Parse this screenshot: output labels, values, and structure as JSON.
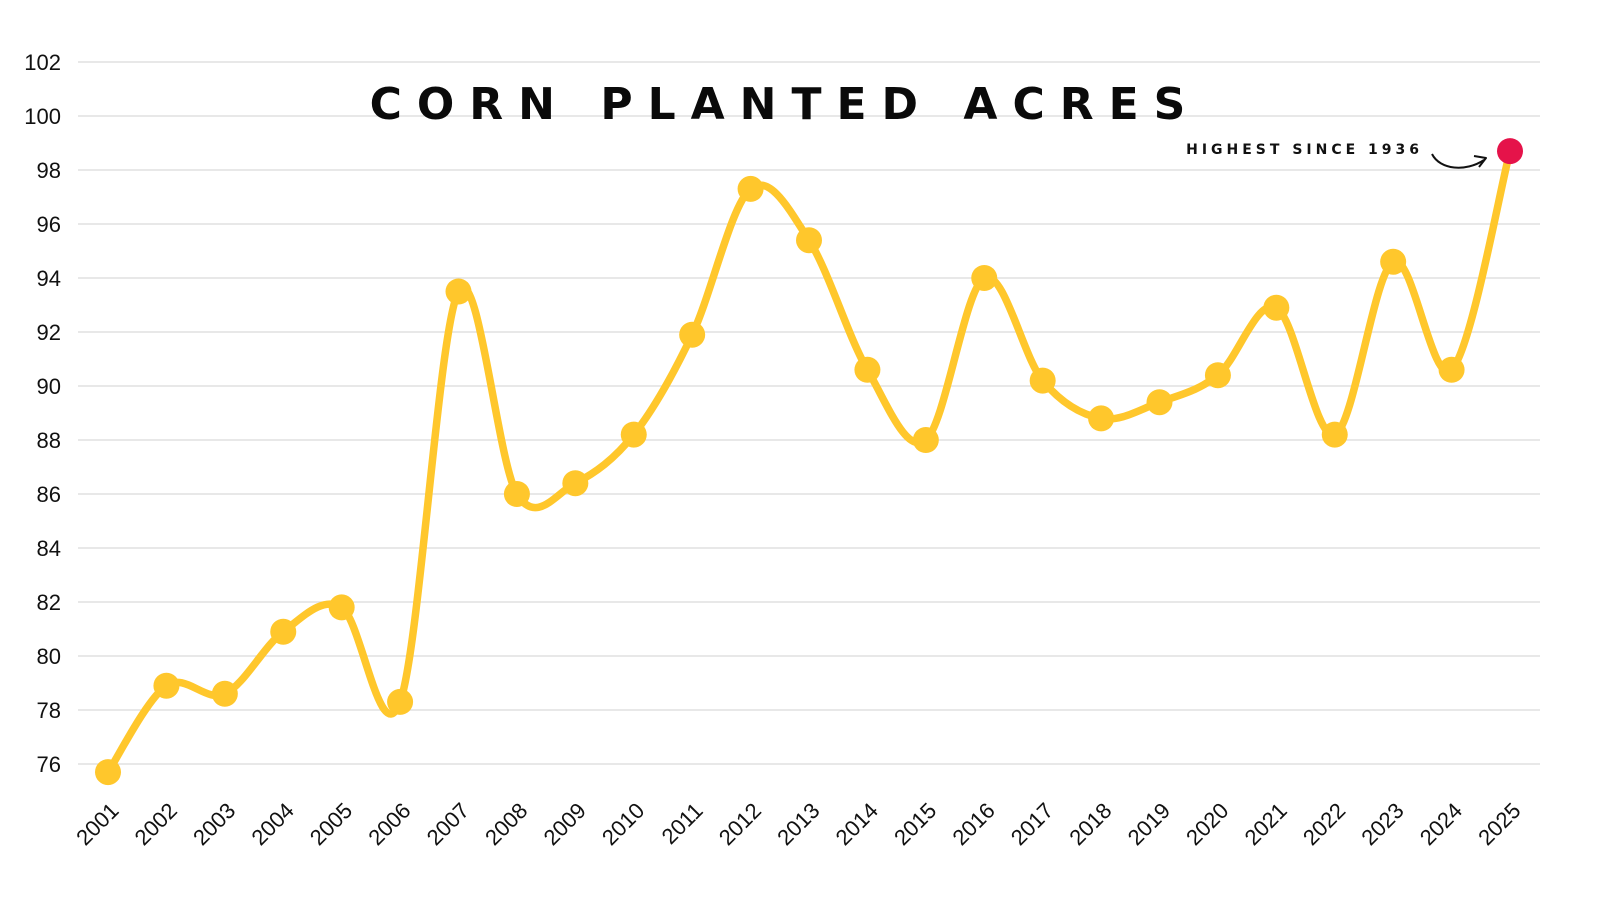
{
  "chart_data": {
    "type": "line",
    "title": "CORN PLANTED ACRES",
    "xlabel": "",
    "ylabel": "",
    "ylim": [
      75,
      102.5
    ],
    "yticks": [
      76,
      78,
      80,
      82,
      84,
      86,
      88,
      90,
      92,
      94,
      96,
      98,
      100,
      102
    ],
    "grid": true,
    "smooth": true,
    "categories": [
      "2001",
      "2002",
      "2003",
      "2004",
      "2005",
      "2006",
      "2007",
      "2008",
      "2009",
      "2010",
      "2011",
      "2012",
      "2013",
      "2014",
      "2015",
      "2016",
      "2017",
      "2018",
      "2019",
      "2020",
      "2021",
      "2022",
      "2023",
      "2024",
      "2025"
    ],
    "series": [
      {
        "name": "Corn planted acres",
        "values": [
          75.7,
          78.9,
          78.6,
          80.9,
          81.8,
          78.3,
          93.5,
          86.0,
          86.4,
          88.2,
          91.9,
          97.3,
          95.4,
          90.6,
          88.0,
          94.0,
          90.2,
          88.8,
          89.4,
          90.4,
          92.9,
          88.2,
          94.6,
          90.6,
          98.7
        ]
      }
    ],
    "annotation": {
      "text": "HIGHEST SINCE 1936",
      "category": "2025",
      "value": 98.7
    },
    "colors": {
      "line": "#FFC72C",
      "highlight": "#E5134A",
      "grid": "#D9D9D9",
      "text": "#111111"
    }
  }
}
